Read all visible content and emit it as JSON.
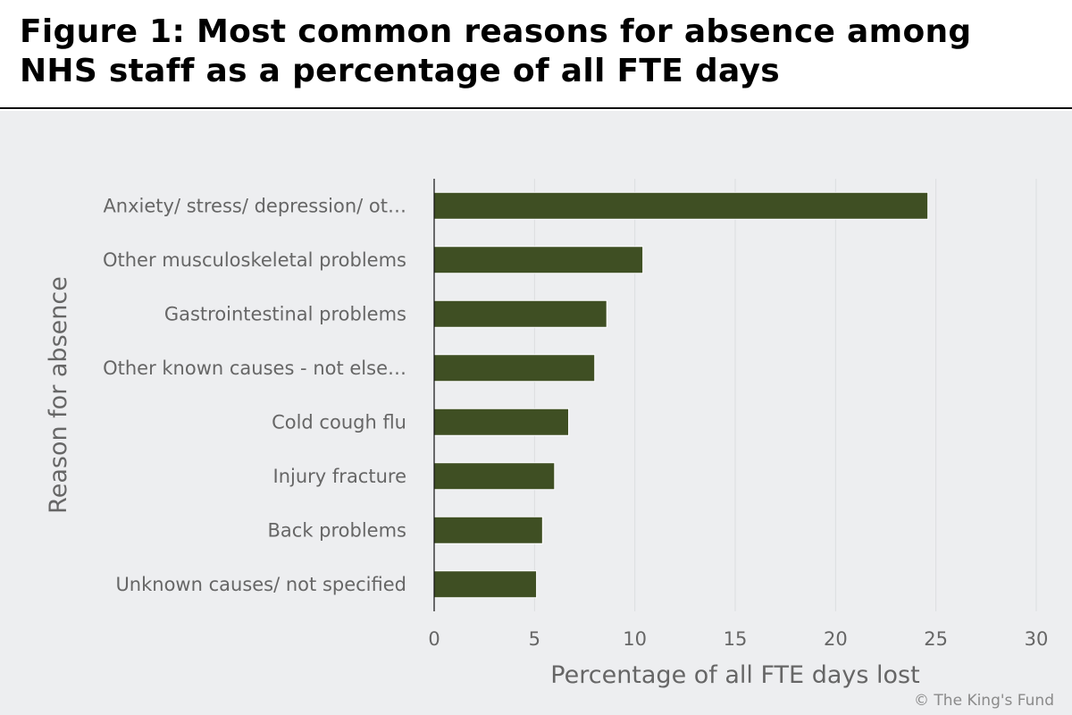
{
  "header": {
    "title_line1": "Figure 1: Most common reasons for absence among",
    "title_line2": "NHS staff as a percentage of all FTE days"
  },
  "credit": "© The King's Fund",
  "colors": {
    "bar": "#3f4f23",
    "background": "#edeef0",
    "grid": "#dcdde0",
    "axis_text": "#666666"
  },
  "chart_data": {
    "type": "bar",
    "orientation": "horizontal",
    "categories": [
      "Anxiety/ stress/ depression/ ot…",
      "Other musculoskeletal problems",
      "Gastrointestinal problems",
      "Other known causes - not else…",
      "Cold cough flu",
      "Injury fracture",
      "Back problems",
      "Unknown causes/ not specified"
    ],
    "values": [
      24.6,
      10.4,
      8.6,
      8.0,
      6.7,
      6.0,
      5.4,
      5.1
    ],
    "xlabel": "Percentage of all FTE days lost",
    "ylabel": "Reason for absence",
    "xlim": [
      0,
      30
    ],
    "xticks": [
      0,
      5,
      10,
      15,
      20,
      25,
      30
    ],
    "grid": true,
    "legend": "none"
  }
}
